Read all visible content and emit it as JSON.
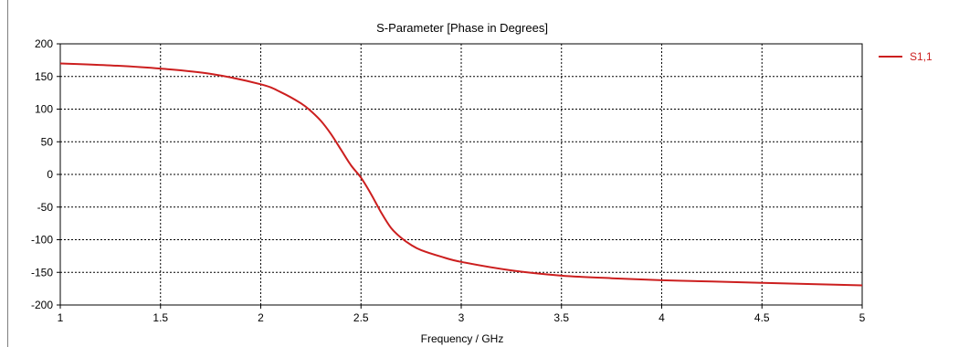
{
  "chart_data": {
    "type": "line",
    "title": "S-Parameter [Phase in Degrees]",
    "xlabel": "Frequency / GHz",
    "ylabel": "",
    "xlim": [
      1,
      5
    ],
    "ylim": [
      -200,
      200
    ],
    "xticks": [
      1,
      1.5,
      2,
      2.5,
      3,
      3.5,
      4,
      4.5,
      5
    ],
    "xtick_labels": [
      "1",
      "1.5",
      "2",
      "2.5",
      "3",
      "3.5",
      "4",
      "4.5",
      "5"
    ],
    "yticks": [
      -200,
      -150,
      -100,
      -50,
      0,
      50,
      100,
      150,
      200
    ],
    "ytick_labels": [
      "-200",
      "-150",
      "-100",
      "-50",
      "0",
      "50",
      "100",
      "150",
      "200"
    ],
    "grid": true,
    "legend_position": "top-right-outside",
    "series": [
      {
        "name": "S1,1",
        "color": "#cc1f1f",
        "x": [
          1.0,
          1.25,
          1.5,
          1.75,
          2.0,
          2.1,
          2.2,
          2.25,
          2.3,
          2.35,
          2.4,
          2.45,
          2.5,
          2.55,
          2.6,
          2.65,
          2.7,
          2.75,
          2.8,
          2.9,
          3.0,
          3.25,
          3.5,
          3.75,
          4.0,
          4.25,
          4.5,
          4.75,
          5.0
        ],
        "y": [
          170,
          167,
          162,
          154,
          138,
          126,
          109,
          97,
          82,
          62,
          38,
          14,
          -5,
          -30,
          -58,
          -82,
          -97,
          -108,
          -116,
          -126,
          -134,
          -147,
          -155,
          -159,
          -162,
          -164,
          -166,
          -168,
          -170
        ]
      }
    ]
  }
}
